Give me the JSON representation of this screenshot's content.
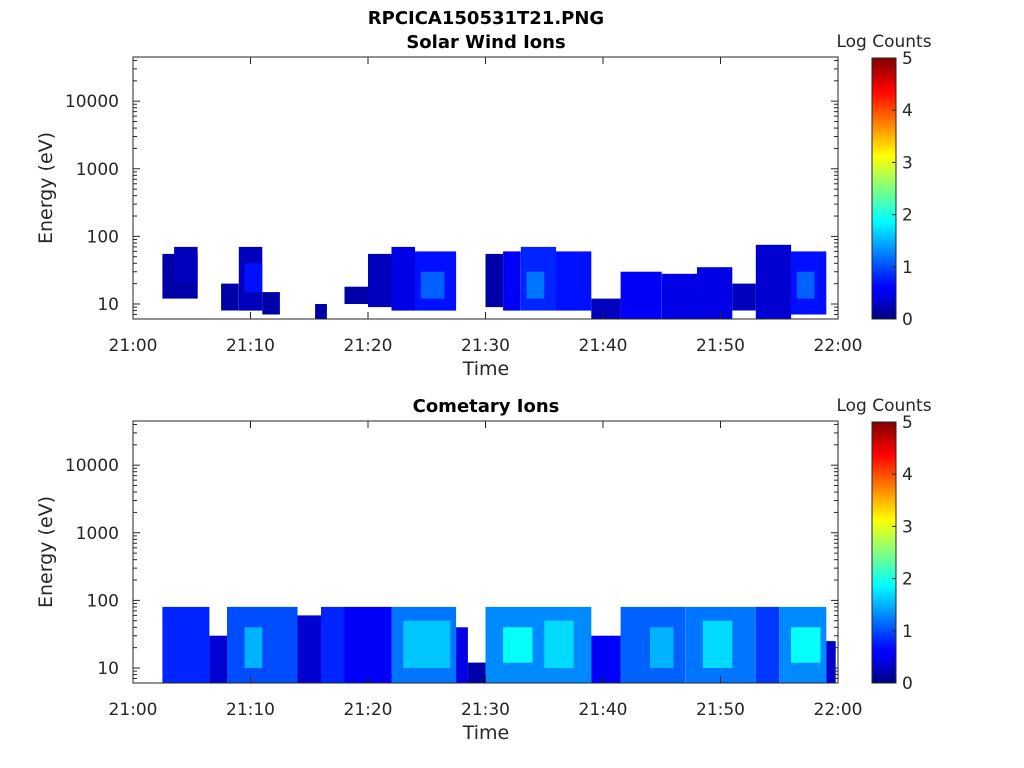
{
  "figure_title": "RPCICA150531T21.PNG",
  "colormap": "jet",
  "chart_data": [
    {
      "type": "heatmap",
      "title": "Solar Wind Ions",
      "xlabel": "Time",
      "ylabel": "Energy (eV)",
      "y_scale": "log",
      "ylim": [
        6,
        45000
      ],
      "xlim": [
        "21:00",
        "22:00"
      ],
      "x_ticks": [
        "21:00",
        "21:10",
        "21:20",
        "21:30",
        "21:40",
        "21:50",
        "22:00"
      ],
      "y_ticks": [
        {
          "value": 10,
          "label": "10"
        },
        {
          "value": 100,
          "label": "100"
        },
        {
          "value": 1000,
          "label": "1000"
        },
        {
          "value": 10000,
          "label": "10000"
        }
      ],
      "colorbar": {
        "label": "Log Counts",
        "range": [
          0,
          5
        ],
        "ticks": [
          "0",
          "1",
          "2",
          "3",
          "4",
          "5"
        ]
      },
      "grid": false,
      "bins": [
        {
          "t": [
            "21:02.5",
            "21:05.5"
          ],
          "e": [
            12,
            55
          ],
          "level": 0.2
        },
        {
          "t": [
            "21:03.5",
            "21:05.5"
          ],
          "e": [
            20,
            70
          ],
          "level": 0.3
        },
        {
          "t": [
            "21:07.5",
            "21:09.0"
          ],
          "e": [
            8,
            20
          ],
          "level": 0.2
        },
        {
          "t": [
            "21:09.0",
            "21:11.0"
          ],
          "e": [
            8,
            70
          ],
          "level": 0.3
        },
        {
          "t": [
            "21:09.5",
            "21:11.0"
          ],
          "e": [
            15,
            40
          ],
          "level": 0.7
        },
        {
          "t": [
            "21:11.0",
            "21:12.5"
          ],
          "e": [
            7,
            15
          ],
          "level": 0.2
        },
        {
          "t": [
            "21:15.5",
            "21:16.5"
          ],
          "e": [
            6,
            10
          ],
          "level": 0.2
        },
        {
          "t": [
            "21:18.0",
            "21:20.0"
          ],
          "e": [
            10,
            18
          ],
          "level": 0.2
        },
        {
          "t": [
            "21:20.0",
            "21:22.0"
          ],
          "e": [
            9,
            55
          ],
          "level": 0.3
        },
        {
          "t": [
            "21:22.0",
            "21:24.0"
          ],
          "e": [
            8,
            70
          ],
          "level": 0.5
        },
        {
          "t": [
            "21:24.0",
            "21:27.5"
          ],
          "e": [
            8,
            60
          ],
          "level": 0.7
        },
        {
          "t": [
            "21:24.5",
            "21:26.5"
          ],
          "e": [
            12,
            30
          ],
          "level": 1.1
        },
        {
          "t": [
            "21:30.0",
            "21:31.5"
          ],
          "e": [
            9,
            55
          ],
          "level": 0.2
        },
        {
          "t": [
            "21:31.5",
            "21:33.0"
          ],
          "e": [
            8,
            60
          ],
          "level": 0.6
        },
        {
          "t": [
            "21:33.0",
            "21:36.0"
          ],
          "e": [
            8,
            70
          ],
          "level": 0.8
        },
        {
          "t": [
            "21:33.5",
            "21:35.0"
          ],
          "e": [
            12,
            30
          ],
          "level": 1.2
        },
        {
          "t": [
            "21:36.0",
            "21:39.0"
          ],
          "e": [
            8,
            60
          ],
          "level": 0.7
        },
        {
          "t": [
            "21:39.0",
            "21:41.5"
          ],
          "e": [
            6,
            12
          ],
          "level": 0.3
        },
        {
          "t": [
            "21:41.5",
            "21:45.0"
          ],
          "e": [
            6,
            30
          ],
          "level": 0.6
        },
        {
          "t": [
            "21:45.0",
            "21:48.0"
          ],
          "e": [
            6,
            28
          ],
          "level": 0.5
        },
        {
          "t": [
            "21:48.0",
            "21:51.0"
          ],
          "e": [
            6,
            35
          ],
          "level": 0.5
        },
        {
          "t": [
            "21:51.0",
            "21:53.0"
          ],
          "e": [
            8,
            20
          ],
          "level": 0.3
        },
        {
          "t": [
            "21:53.0",
            "21:56.0"
          ],
          "e": [
            6,
            75
          ],
          "level": 0.4
        },
        {
          "t": [
            "21:56.0",
            "21:59.0"
          ],
          "e": [
            7,
            60
          ],
          "level": 0.7
        },
        {
          "t": [
            "21:56.5",
            "21:58.0"
          ],
          "e": [
            12,
            30
          ],
          "level": 1.1
        }
      ]
    },
    {
      "type": "heatmap",
      "title": "Cometary Ions",
      "xlabel": "Time",
      "ylabel": "Energy (eV)",
      "y_scale": "log",
      "ylim": [
        6,
        45000
      ],
      "xlim": [
        "21:00",
        "22:00"
      ],
      "x_ticks": [
        "21:00",
        "21:10",
        "21:20",
        "21:30",
        "21:40",
        "21:50",
        "22:00"
      ],
      "y_ticks": [
        {
          "value": 10,
          "label": "10"
        },
        {
          "value": 100,
          "label": "100"
        },
        {
          "value": 1000,
          "label": "1000"
        },
        {
          "value": 10000,
          "label": "10000"
        }
      ],
      "colorbar": {
        "label": "Log Counts",
        "range": [
          0,
          5
        ],
        "ticks": [
          "0",
          "1",
          "2",
          "3",
          "4",
          "5"
        ]
      },
      "grid": false,
      "bins": [
        {
          "t": [
            "21:02.5",
            "21:06.5"
          ],
          "e": [
            6,
            80
          ],
          "level": 0.8
        },
        {
          "t": [
            "21:06.5",
            "21:08.0"
          ],
          "e": [
            6,
            30
          ],
          "level": 0.4
        },
        {
          "t": [
            "21:08.0",
            "21:14.0"
          ],
          "e": [
            6,
            80
          ],
          "level": 1.0
        },
        {
          "t": [
            "21:09.5",
            "21:11.0"
          ],
          "e": [
            10,
            40
          ],
          "level": 1.5
        },
        {
          "t": [
            "21:14.0",
            "21:16.0"
          ],
          "e": [
            6,
            60
          ],
          "level": 0.4
        },
        {
          "t": [
            "21:16.0",
            "21:18.0"
          ],
          "e": [
            6,
            80
          ],
          "level": 0.8
        },
        {
          "t": [
            "21:18.0",
            "21:22.0"
          ],
          "e": [
            6,
            80
          ],
          "level": 0.6
        },
        {
          "t": [
            "21:22.0",
            "21:27.5"
          ],
          "e": [
            6,
            80
          ],
          "level": 1.2
        },
        {
          "t": [
            "21:23.0",
            "21:27.0"
          ],
          "e": [
            10,
            50
          ],
          "level": 1.6
        },
        {
          "t": [
            "21:27.5",
            "21:28.5"
          ],
          "e": [
            6,
            40
          ],
          "level": 0.5
        },
        {
          "t": [
            "21:28.5",
            "21:30.0"
          ],
          "e": [
            6,
            12
          ],
          "level": 0.2
        },
        {
          "t": [
            "21:30.0",
            "21:39.0"
          ],
          "e": [
            6,
            80
          ],
          "level": 1.3
        },
        {
          "t": [
            "21:31.5",
            "21:34.0"
          ],
          "e": [
            12,
            40
          ],
          "level": 1.9
        },
        {
          "t": [
            "21:35.0",
            "21:37.5"
          ],
          "e": [
            10,
            50
          ],
          "level": 1.7
        },
        {
          "t": [
            "21:39.0",
            "21:41.5"
          ],
          "e": [
            6,
            30
          ],
          "level": 0.6
        },
        {
          "t": [
            "21:41.5",
            "21:47.0"
          ],
          "e": [
            6,
            80
          ],
          "level": 1.1
        },
        {
          "t": [
            "21:44.0",
            "21:46.0"
          ],
          "e": [
            10,
            40
          ],
          "level": 1.5
        },
        {
          "t": [
            "21:47.0",
            "21:53.0"
          ],
          "e": [
            6,
            80
          ],
          "level": 1.2
        },
        {
          "t": [
            "21:48.5",
            "21:51.0"
          ],
          "e": [
            10,
            50
          ],
          "level": 1.7
        },
        {
          "t": [
            "21:53.0",
            "21:55.0"
          ],
          "e": [
            6,
            80
          ],
          "level": 0.9
        },
        {
          "t": [
            "21:55.0",
            "21:59.0"
          ],
          "e": [
            6,
            80
          ],
          "level": 1.3
        },
        {
          "t": [
            "21:56.0",
            "21:58.5"
          ],
          "e": [
            12,
            40
          ],
          "level": 1.9
        },
        {
          "t": [
            "21:59.0",
            "21:59.8"
          ],
          "e": [
            6,
            25
          ],
          "level": 0.4
        }
      ]
    }
  ]
}
